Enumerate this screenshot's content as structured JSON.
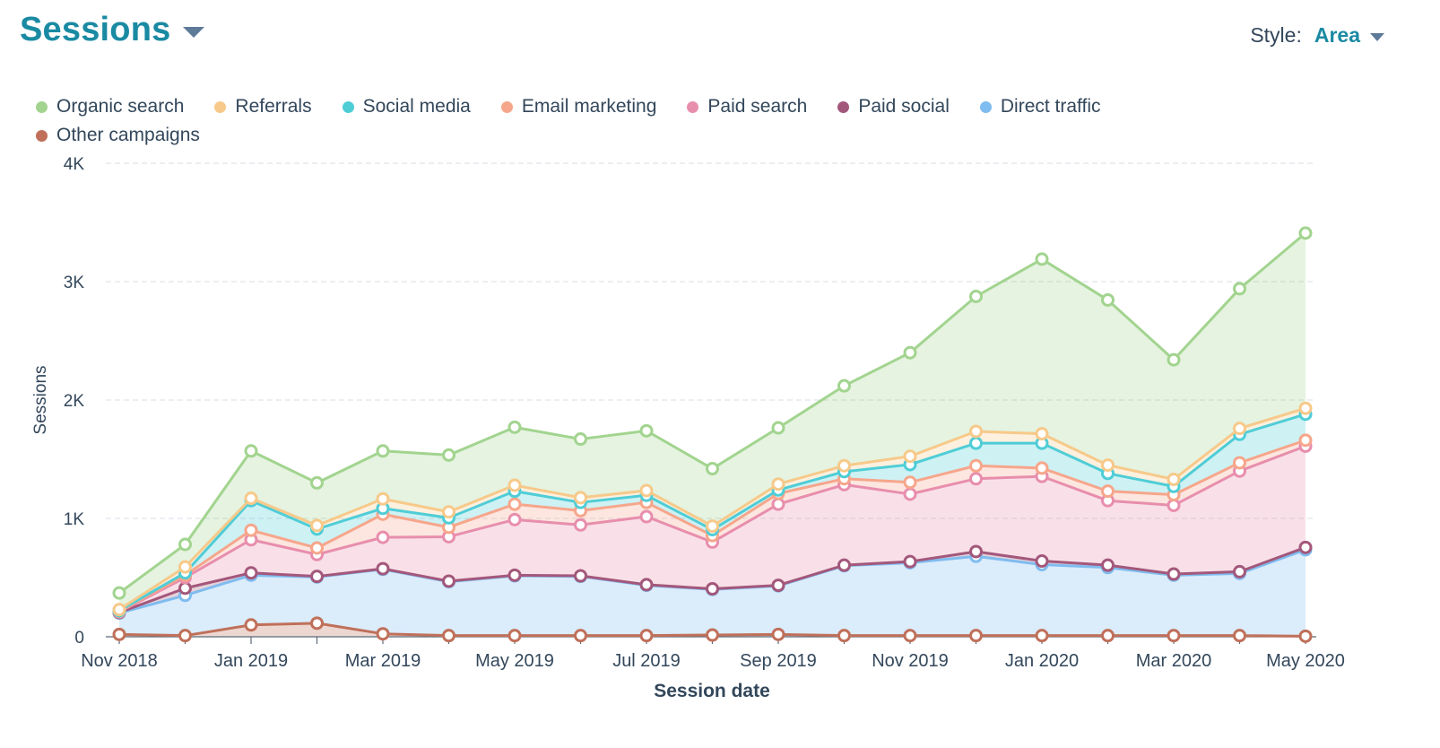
{
  "header": {
    "title": "Sessions",
    "style_label": "Style:",
    "style_value": "Area"
  },
  "chart_data": {
    "type": "area",
    "stacked": true,
    "xlabel": "Session date",
    "ylabel": "Sessions",
    "ylim": [
      0,
      4000
    ],
    "yticks": [
      0,
      1000,
      2000,
      3000,
      4000
    ],
    "ytick_labels": [
      "0",
      "1K",
      "2K",
      "3K",
      "4K"
    ],
    "grid": true,
    "legend_position": "top-left",
    "x": [
      "2018-11",
      "2018-12",
      "2019-01",
      "2019-02",
      "2019-03",
      "2019-04",
      "2019-05",
      "2019-06",
      "2019-07",
      "2019-08",
      "2019-09",
      "2019-10",
      "2019-11",
      "2019-12",
      "2020-01",
      "2020-02",
      "2020-03",
      "2020-04",
      "2020-05"
    ],
    "xtick_labels": [
      "Nov 2018",
      "",
      "Jan 2019",
      "",
      "Mar 2019",
      "",
      "May 2019",
      "",
      "Jul 2019",
      "",
      "Sep 2019",
      "",
      "Nov 2019",
      "",
      "Jan 2020",
      "",
      "Mar 2020",
      "",
      "May 2020"
    ],
    "legend_order": [
      "Organic search",
      "Referrals",
      "Social media",
      "Email marketing",
      "Paid search",
      "Paid social",
      "Direct traffic",
      "Other campaigns"
    ],
    "series": [
      {
        "name": "Other campaigns",
        "color": "#c0705a",
        "values": [
          20,
          10,
          100,
          115,
          25,
          10,
          10,
          10,
          10,
          15,
          20,
          10,
          10,
          10,
          10,
          10,
          10,
          10,
          5
        ]
      },
      {
        "name": "Direct traffic",
        "color": "#7fbcef",
        "values": [
          180,
          340,
          420,
          390,
          545,
          455,
          505,
          500,
          425,
          385,
          410,
          590,
          615,
          670,
          600,
          575,
          510,
          525,
          730
        ]
      },
      {
        "name": "Paid social",
        "color": "#a3587b",
        "values": [
          5,
          60,
          20,
          5,
          5,
          5,
          5,
          5,
          5,
          5,
          5,
          5,
          10,
          40,
          30,
          20,
          10,
          15,
          20
        ]
      },
      {
        "name": "Paid search",
        "color": "#e88ead",
        "values": [
          5,
          90,
          280,
          185,
          265,
          375,
          470,
          430,
          575,
          395,
          685,
          680,
          570,
          615,
          715,
          545,
          580,
          850,
          855
        ]
      },
      {
        "name": "Email marketing",
        "color": "#f6a68b",
        "values": [
          5,
          20,
          80,
          55,
          195,
          80,
          130,
          120,
          120,
          55,
          90,
          50,
          100,
          110,
          70,
          80,
          90,
          70,
          50
        ]
      },
      {
        "name": "Social media",
        "color": "#4fcdd6",
        "values": [
          5,
          20,
          250,
          160,
          50,
          80,
          110,
          70,
          60,
          50,
          30,
          60,
          150,
          190,
          210,
          150,
          70,
          240,
          220
        ]
      },
      {
        "name": "Referrals",
        "color": "#f7c98a",
        "values": [
          10,
          50,
          20,
          30,
          80,
          50,
          50,
          40,
          40,
          30,
          50,
          50,
          70,
          100,
          80,
          70,
          60,
          50,
          50
        ]
      },
      {
        "name": "Organic search",
        "color": "#a2d48f",
        "values": [
          140,
          190,
          400,
          360,
          405,
          480,
          490,
          495,
          505,
          485,
          475,
          675,
          875,
          1140,
          1475,
          1395,
          1010,
          1180,
          1480
        ]
      }
    ]
  }
}
